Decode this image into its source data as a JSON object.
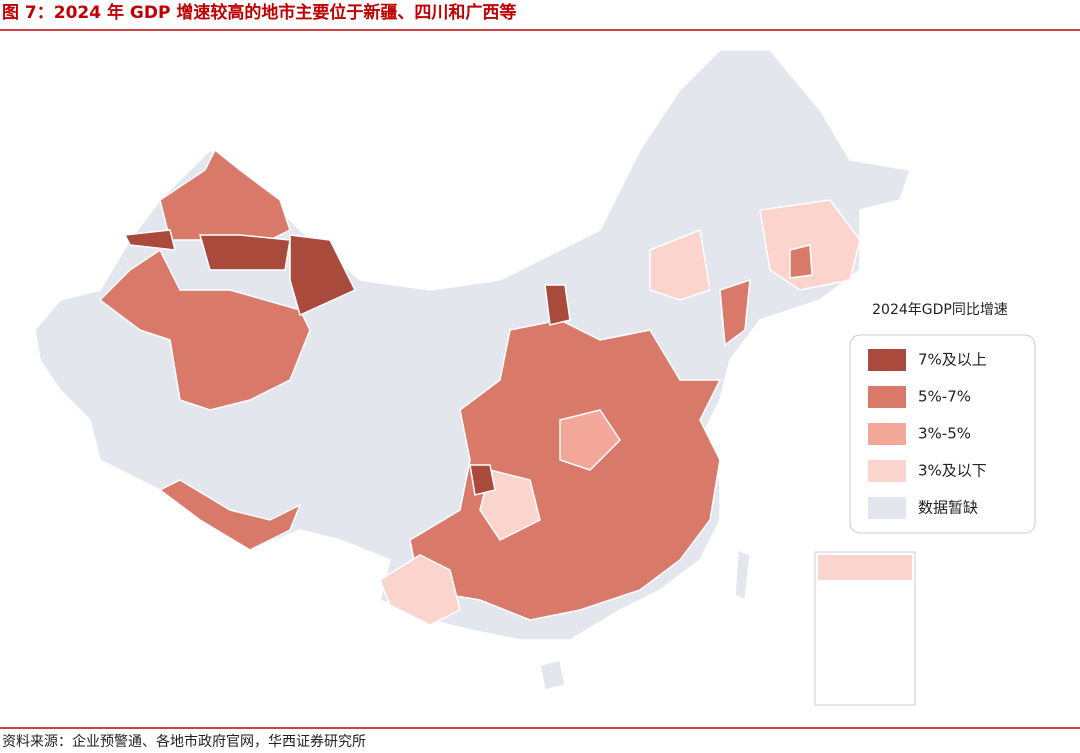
{
  "header": {
    "title": "图 7：2024 年 GDP 增速较高的地市主要位于新疆、四川和广西等"
  },
  "legend": {
    "title": "2024年GDP同比增速",
    "items": [
      {
        "label": "7%及以上",
        "color": "#a94a3c"
      },
      {
        "label": "5%-7%",
        "color": "#d9796a"
      },
      {
        "label": "3%-5%",
        "color": "#f3a798"
      },
      {
        "label": "3%及以下",
        "color": "#fbd5cd"
      },
      {
        "label": "数据暂缺",
        "color": "#e4e6ee"
      }
    ]
  },
  "footer": {
    "source": "资料来源：企业预警通、各地市政府官网，华西证券研究所"
  }
}
